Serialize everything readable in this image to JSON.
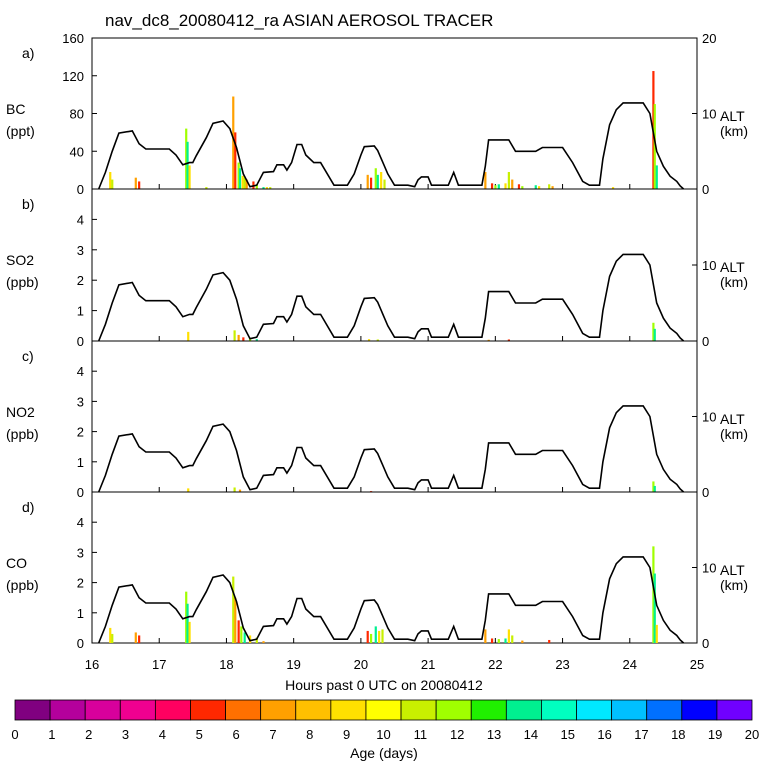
{
  "figure": {
    "title": "nav_dc8_20080412_ra ASIAN AEROSOL TRACER",
    "xlabel": "Hours past 0 UTC on 20080412",
    "colorbar_label": "Age (days)"
  },
  "chart_data": {
    "type": "bar",
    "xlim": [
      16,
      25
    ],
    "x_ticks": [
      "16",
      "17",
      "18",
      "19",
      "20",
      "21",
      "22",
      "23",
      "24",
      "25"
    ],
    "altitude_axis": {
      "label": "ALT",
      "unit": "(km)",
      "ylim": [
        0,
        20
      ],
      "panel_a_ticks": [
        "0",
        "10",
        "20"
      ],
      "panel_bcd_ticks": [
        "0",
        "10"
      ]
    },
    "altitude_profile": [
      [
        16.1,
        0.0
      ],
      [
        16.2,
        2.2
      ],
      [
        16.3,
        5.0
      ],
      [
        16.4,
        7.4
      ],
      [
        16.6,
        7.7
      ],
      [
        16.7,
        6.0
      ],
      [
        16.8,
        5.3
      ],
      [
        17.15,
        5.3
      ],
      [
        17.25,
        4.5
      ],
      [
        17.35,
        3.2
      ],
      [
        17.45,
        3.5
      ],
      [
        17.5,
        3.5
      ],
      [
        17.55,
        4.4
      ],
      [
        17.7,
        6.8
      ],
      [
        17.8,
        8.7
      ],
      [
        17.95,
        9.0
      ],
      [
        18.05,
        8.0
      ],
      [
        18.15,
        5.5
      ],
      [
        18.25,
        2.0
      ],
      [
        18.35,
        0.3
      ],
      [
        18.45,
        0.5
      ],
      [
        18.55,
        2.2
      ],
      [
        18.7,
        2.3
      ],
      [
        18.75,
        3.2
      ],
      [
        18.85,
        3.2
      ],
      [
        18.9,
        2.5
      ],
      [
        18.97,
        3.5
      ],
      [
        19.05,
        5.9
      ],
      [
        19.12,
        5.9
      ],
      [
        19.18,
        4.5
      ],
      [
        19.3,
        3.5
      ],
      [
        19.4,
        3.5
      ],
      [
        19.6,
        0.5
      ],
      [
        19.8,
        0.5
      ],
      [
        19.9,
        2.0
      ],
      [
        20.0,
        4.5
      ],
      [
        20.05,
        5.6
      ],
      [
        20.2,
        5.7
      ],
      [
        20.25,
        5.1
      ],
      [
        20.4,
        2.0
      ],
      [
        20.5,
        0.5
      ],
      [
        20.7,
        0.5
      ],
      [
        20.8,
        0.3
      ],
      [
        20.85,
        1.2
      ],
      [
        20.9,
        1.6
      ],
      [
        21.0,
        1.6
      ],
      [
        21.05,
        0.5
      ],
      [
        21.3,
        0.5
      ],
      [
        21.38,
        2.2
      ],
      [
        21.45,
        0.5
      ],
      [
        21.7,
        0.5
      ],
      [
        21.8,
        0.5
      ],
      [
        21.85,
        3.0
      ],
      [
        21.9,
        6.5
      ],
      [
        22.2,
        6.5
      ],
      [
        22.3,
        5.0
      ],
      [
        22.6,
        5.0
      ],
      [
        22.7,
        5.5
      ],
      [
        23.0,
        5.5
      ],
      [
        23.15,
        3.5
      ],
      [
        23.3,
        1.0
      ],
      [
        23.4,
        0.5
      ],
      [
        23.55,
        0.5
      ],
      [
        23.6,
        4.0
      ],
      [
        23.7,
        8.5
      ],
      [
        23.8,
        10.5
      ],
      [
        23.9,
        11.4
      ],
      [
        24.2,
        11.4
      ],
      [
        24.3,
        10.0
      ],
      [
        24.4,
        5.0
      ],
      [
        24.5,
        3.0
      ],
      [
        24.6,
        1.7
      ],
      [
        24.7,
        1.0
      ],
      [
        24.75,
        0.4
      ],
      [
        24.8,
        0.0
      ]
    ],
    "colorbar": {
      "ticks": [
        "0",
        "1",
        "2",
        "3",
        "4",
        "5",
        "6",
        "7",
        "8",
        "9",
        "10",
        "11",
        "12",
        "13",
        "14",
        "15",
        "16",
        "17",
        "18",
        "19",
        "20"
      ],
      "colors": [
        "#800080",
        "#b4009c",
        "#d8009c",
        "#f00090",
        "#ff0060",
        "#ff2800",
        "#ff7000",
        "#ffa000",
        "#ffc000",
        "#ffe000",
        "#ffff00",
        "#c8f000",
        "#a0ff00",
        "#20f000",
        "#00f090",
        "#00ffc0",
        "#00e8ff",
        "#00c0ff",
        "#0070ff",
        "#0000ff",
        "#7000ff"
      ]
    },
    "panels": [
      {
        "letter": "a)",
        "species": "BC",
        "unit": "(ppt)",
        "ylim": [
          0,
          160
        ],
        "y_ticks": [
          "0",
          "40",
          "80",
          "120",
          "160"
        ],
        "bars": [
          [
            16.27,
            18
          ],
          [
            16.3,
            10
          ],
          [
            16.65,
            12
          ],
          [
            16.7,
            8
          ],
          [
            17.4,
            64
          ],
          [
            17.42,
            50
          ],
          [
            17.45,
            25
          ],
          [
            17.7,
            2
          ],
          [
            18.1,
            98
          ],
          [
            18.13,
            60
          ],
          [
            18.18,
            28
          ],
          [
            18.2,
            22
          ],
          [
            18.24,
            14
          ],
          [
            18.27,
            12
          ],
          [
            18.3,
            10
          ],
          [
            18.4,
            8
          ],
          [
            18.45,
            5
          ],
          [
            18.55,
            2
          ],
          [
            18.6,
            2
          ],
          [
            18.65,
            2
          ],
          [
            20.1,
            15
          ],
          [
            20.15,
            12
          ],
          [
            20.22,
            22
          ],
          [
            20.25,
            15
          ],
          [
            20.3,
            18
          ],
          [
            20.35,
            10
          ],
          [
            21.85,
            18
          ],
          [
            21.95,
            6
          ],
          [
            22.0,
            4
          ],
          [
            22.05,
            5
          ],
          [
            22.15,
            6
          ],
          [
            22.2,
            18
          ],
          [
            22.25,
            10
          ],
          [
            22.35,
            5
          ],
          [
            22.4,
            3
          ],
          [
            22.6,
            4
          ],
          [
            22.65,
            3
          ],
          [
            22.8,
            5
          ],
          [
            22.85,
            3
          ],
          [
            24.35,
            125
          ],
          [
            24.37,
            90
          ],
          [
            24.4,
            25
          ],
          [
            23.75,
            2
          ]
        ]
      },
      {
        "letter": "b)",
        "species": "SO2",
        "unit": "(ppb)",
        "ylim": [
          0,
          5
        ],
        "y_ticks": [
          "0",
          "1",
          "2",
          "3",
          "4"
        ],
        "bars": [
          [
            17.43,
            0.3
          ],
          [
            18.12,
            0.35
          ],
          [
            18.18,
            0.2
          ],
          [
            18.25,
            0.12
          ],
          [
            18.35,
            0.08
          ],
          [
            18.45,
            0.06
          ],
          [
            20.12,
            0.06
          ],
          [
            20.25,
            0.05
          ],
          [
            21.9,
            0.04
          ],
          [
            22.2,
            0.05
          ],
          [
            24.35,
            0.6
          ],
          [
            24.37,
            0.4
          ]
        ]
      },
      {
        "letter": "c)",
        "species": "NO2",
        "unit": "(ppb)",
        "ylim": [
          0,
          5
        ],
        "y_ticks": [
          "0",
          "1",
          "2",
          "3",
          "4"
        ],
        "bars": [
          [
            17.43,
            0.12
          ],
          [
            18.12,
            0.15
          ],
          [
            18.2,
            0.08
          ],
          [
            20.15,
            0.03
          ],
          [
            24.35,
            0.35
          ],
          [
            24.37,
            0.2
          ]
        ]
      },
      {
        "letter": "d)",
        "species": "CO",
        "unit": "(ppb)",
        "ylim": [
          0,
          5
        ],
        "y_ticks": [
          "0",
          "1",
          "2",
          "3",
          "4"
        ],
        "bars": [
          [
            16.27,
            0.5
          ],
          [
            16.3,
            0.3
          ],
          [
            16.65,
            0.35
          ],
          [
            16.7,
            0.25
          ],
          [
            17.4,
            1.7
          ],
          [
            17.42,
            1.3
          ],
          [
            17.45,
            0.7
          ],
          [
            18.1,
            2.2
          ],
          [
            18.13,
            1.5
          ],
          [
            18.18,
            0.75
          ],
          [
            18.22,
            0.55
          ],
          [
            18.27,
            0.35
          ],
          [
            18.35,
            0.25
          ],
          [
            18.45,
            0.18
          ],
          [
            18.55,
            0.06
          ],
          [
            20.1,
            0.4
          ],
          [
            20.15,
            0.3
          ],
          [
            20.22,
            0.55
          ],
          [
            20.27,
            0.4
          ],
          [
            20.32,
            0.45
          ],
          [
            21.85,
            0.45
          ],
          [
            21.95,
            0.15
          ],
          [
            22.05,
            0.13
          ],
          [
            22.15,
            0.15
          ],
          [
            22.2,
            0.45
          ],
          [
            22.25,
            0.25
          ],
          [
            22.4,
            0.08
          ],
          [
            22.8,
            0.1
          ],
          [
            24.35,
            3.2
          ],
          [
            24.37,
            2.3
          ],
          [
            24.4,
            0.6
          ]
        ]
      }
    ]
  }
}
